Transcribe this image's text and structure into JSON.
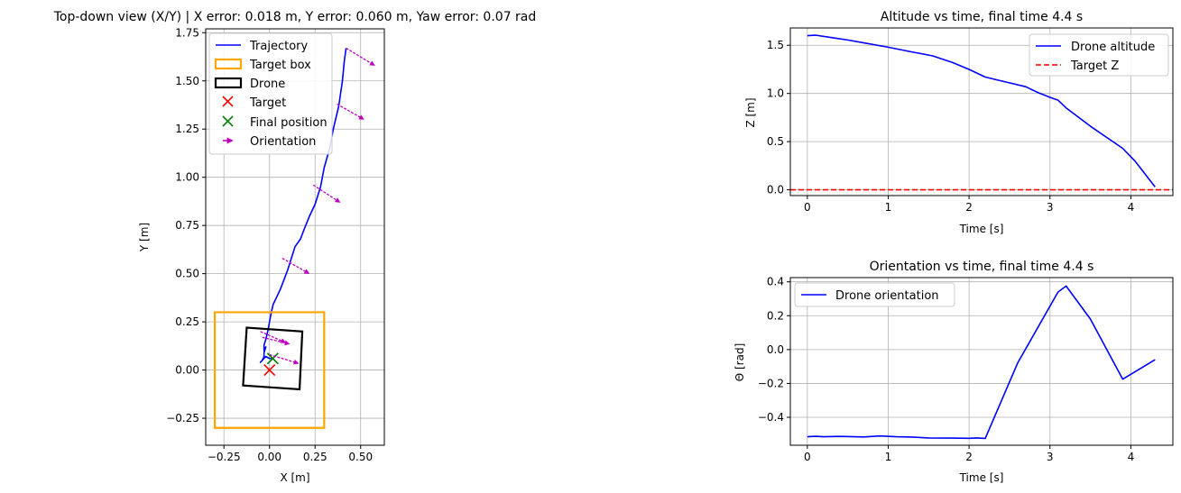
{
  "chart_data": [
    {
      "id": "topdown",
      "type": "line",
      "title": "Top-down view (X/Y) | X error: 0.018 m, Y error: 0.060 m, Yaw error: 0.07 rad",
      "xlabel": "X [m]",
      "ylabel": "Y [m]",
      "xlim": [
        -0.35,
        0.63
      ],
      "ylim": [
        -0.39,
        1.77
      ],
      "xticks": [
        -0.25,
        0.0,
        0.25,
        0.5
      ],
      "xtick_labels": [
        "−0.25",
        "0.00",
        "0.25",
        "0.50"
      ],
      "yticks": [
        -0.25,
        0.0,
        0.25,
        0.5,
        0.75,
        1.0,
        1.25,
        1.5,
        1.75
      ],
      "ytick_labels": [
        "−0.25",
        "0.00",
        "0.25",
        "0.50",
        "0.75",
        "1.00",
        "1.25",
        "1.50",
        "1.75"
      ],
      "grid": true,
      "legend_position": "upper-left",
      "colors": {
        "trajectory": "#0000ff",
        "target_box": "#ffa500",
        "drone": "#000000",
        "target": "#ff0000",
        "final": "#008000",
        "orientation": "#bf00bf"
      },
      "series": [
        {
          "name": "Trajectory",
          "kind": "line",
          "x": [
            0.42,
            0.41,
            0.4,
            0.38,
            0.35,
            0.33,
            0.3,
            0.28,
            0.25,
            0.22,
            0.19,
            0.17,
            0.14,
            0.12,
            0.1,
            0.08,
            0.06,
            0.04,
            0.02,
            0.01,
            0.0,
            -0.01,
            -0.02,
            -0.03,
            -0.03,
            -0.02,
            -0.03,
            -0.03,
            -0.04,
            -0.05,
            -0.03,
            -0.02,
            0.0,
            0.02,
            0.01
          ],
          "y": [
            1.67,
            1.6,
            1.5,
            1.37,
            1.25,
            1.15,
            1.05,
            0.95,
            0.86,
            0.8,
            0.73,
            0.68,
            0.64,
            0.58,
            0.52,
            0.47,
            0.42,
            0.38,
            0.34,
            0.3,
            0.25,
            0.2,
            0.16,
            0.13,
            0.1,
            0.12,
            0.09,
            0.07,
            0.05,
            0.04,
            0.06,
            0.07,
            0.06,
            0.06,
            0.06
          ]
        },
        {
          "name": "Target box",
          "kind": "rect",
          "x": [
            -0.3,
            0.3,
            0.3,
            -0.3
          ],
          "y": [
            -0.3,
            -0.3,
            0.3,
            0.3
          ]
        },
        {
          "name": "Drone",
          "kind": "polygon",
          "x": [
            -0.145,
            0.165,
            0.18,
            -0.125
          ],
          "y": [
            -0.08,
            -0.1,
            0.2,
            0.22
          ]
        },
        {
          "name": "Target",
          "kind": "marker",
          "x": [
            0.0
          ],
          "y": [
            0.0
          ]
        },
        {
          "name": "Final position",
          "kind": "marker",
          "x": [
            0.018
          ],
          "y": [
            0.06
          ]
        },
        {
          "name": "Orientation",
          "kind": "arrows",
          "x": [
            0.42,
            0.37,
            0.24,
            0.07,
            -0.05,
            -0.04,
            0.0
          ],
          "y": [
            1.67,
            1.38,
            0.96,
            0.58,
            0.2,
            0.17,
            0.08
          ],
          "dx": [
            0.14,
            0.13,
            0.13,
            0.13,
            0.12,
            0.13,
            0.14
          ],
          "dy": [
            -0.08,
            -0.07,
            -0.08,
            -0.07,
            -0.05,
            -0.03,
            -0.04
          ]
        }
      ],
      "legend": [
        "Trajectory",
        "Target box",
        "Drone",
        "Target",
        "Final position",
        "Orientation"
      ]
    },
    {
      "id": "altitude",
      "type": "line",
      "title": "Altitude vs time, final time 4.4 s",
      "xlabel": "Time [s]",
      "ylabel": "Z [m]",
      "xlim": [
        -0.21,
        4.52
      ],
      "ylim": [
        -0.06,
        1.68
      ],
      "xticks": [
        0,
        1,
        2,
        3,
        4
      ],
      "xtick_labels": [
        "0",
        "1",
        "2",
        "3",
        "4"
      ],
      "yticks": [
        0.0,
        0.5,
        1.0,
        1.5
      ],
      "ytick_labels": [
        "0.0",
        "0.5",
        "1.0",
        "1.5"
      ],
      "grid": true,
      "legend_position": "upper-right",
      "colors": {
        "series": "#0000ff",
        "target": "#ff0000"
      },
      "series": [
        {
          "name": "Drone altitude",
          "kind": "line",
          "x": [
            0.0,
            0.1,
            0.3,
            0.5,
            0.7,
            1.0,
            1.3,
            1.55,
            1.8,
            2.0,
            2.2,
            2.45,
            2.7,
            2.85,
            3.0,
            3.1,
            3.2,
            3.5,
            3.9,
            4.05,
            4.3
          ],
          "y": [
            1.6,
            1.605,
            1.58,
            1.555,
            1.525,
            1.48,
            1.43,
            1.39,
            1.32,
            1.25,
            1.17,
            1.12,
            1.07,
            1.01,
            0.96,
            0.93,
            0.85,
            0.66,
            0.43,
            0.3,
            0.03
          ]
        },
        {
          "name": "Target Z",
          "kind": "hline",
          "y": [
            0.0
          ]
        }
      ],
      "legend": [
        "Drone altitude",
        "Target Z"
      ]
    },
    {
      "id": "orientation",
      "type": "line",
      "title": "Orientation vs time, final time 4.4 s",
      "xlabel": "Time [s]",
      "ylabel": "Θ [rad]",
      "xlim": [
        -0.21,
        4.52
      ],
      "ylim": [
        -0.565,
        0.425
      ],
      "xticks": [
        0,
        1,
        2,
        3,
        4
      ],
      "xtick_labels": [
        "0",
        "1",
        "2",
        "3",
        "4"
      ],
      "yticks": [
        -0.4,
        -0.2,
        0.0,
        0.2,
        0.4
      ],
      "ytick_labels": [
        "−0.4",
        "−0.2",
        "0.0",
        "0.2",
        "0.4"
      ],
      "grid": true,
      "legend_position": "upper-left",
      "colors": {
        "series": "#0000ff"
      },
      "series": [
        {
          "name": "Drone orientation",
          "kind": "line",
          "x": [
            0.0,
            0.1,
            0.2,
            0.4,
            0.7,
            0.9,
            1.1,
            1.3,
            1.5,
            1.8,
            2.0,
            2.1,
            2.2,
            2.6,
            3.1,
            3.2,
            3.5,
            3.9,
            4.3
          ],
          "y": [
            -0.515,
            -0.512,
            -0.515,
            -0.513,
            -0.516,
            -0.51,
            -0.515,
            -0.517,
            -0.522,
            -0.523,
            -0.524,
            -0.522,
            -0.525,
            -0.08,
            0.34,
            0.375,
            0.18,
            -0.175,
            -0.06
          ]
        }
      ],
      "legend": [
        "Drone orientation"
      ]
    }
  ]
}
